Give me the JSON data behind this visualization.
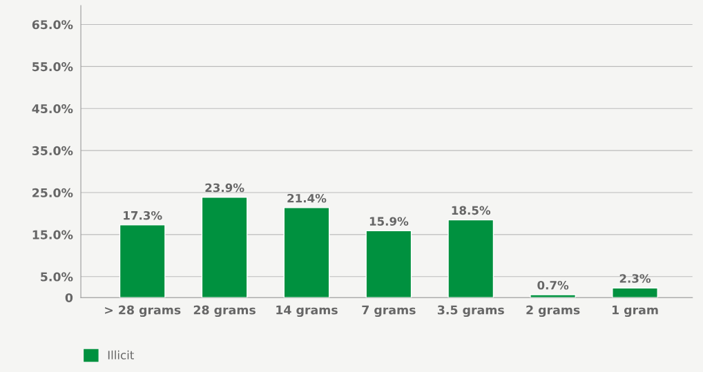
{
  "chart_data": {
    "type": "bar",
    "categories": [
      "> 28 grams",
      "28 grams",
      "14 grams",
      "7 grams",
      "3.5 grams",
      "2 grams",
      "1 gram"
    ],
    "series": [
      {
        "name": "Illicit",
        "color": "#00913f",
        "values": [
          17.3,
          23.9,
          21.4,
          15.9,
          18.5,
          0.7,
          2.3
        ]
      }
    ],
    "value_labels": [
      "17.3%",
      "23.9%",
      "21.4%",
      "15.9%",
      "18.5%",
      "0.7%",
      "2.3%"
    ],
    "ylim": [
      0,
      69.5
    ],
    "yticks": [
      {
        "value": 0,
        "label": "0"
      },
      {
        "value": 5,
        "label": "5.0%"
      },
      {
        "value": 15,
        "label": "15.0%"
      },
      {
        "value": 25,
        "label": "25.0%"
      },
      {
        "value": 35,
        "label": "35.0%"
      },
      {
        "value": 45,
        "label": "45.0%"
      },
      {
        "value": 55,
        "label": "55.0%"
      },
      {
        "value": 65,
        "label": "65.0%"
      }
    ],
    "grid": "y",
    "legend": "bottom left"
  }
}
